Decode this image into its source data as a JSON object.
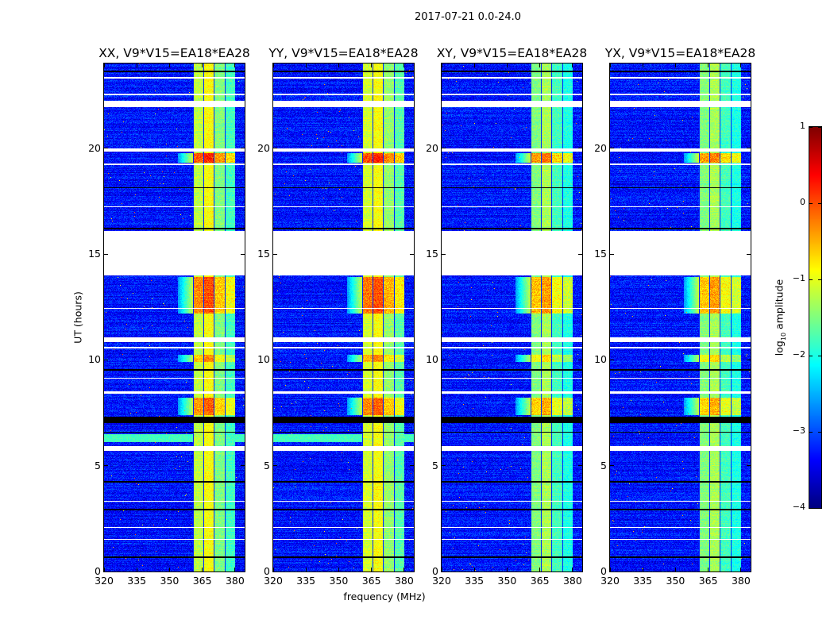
{
  "chart_data": {
    "type": "heatmap",
    "title": "2017-07-21 0.0-24.0",
    "xlabel": "frequency (MHz)",
    "ylabel": "UT (hours)",
    "xlim": [
      320,
      384.4
    ],
    "ylim": [
      0,
      24
    ],
    "xticks": [
      320,
      335,
      350,
      365,
      380
    ],
    "yticks": [
      0,
      5,
      10,
      15,
      20
    ],
    "colorbar": {
      "label_main": "log",
      "label_sub": "10",
      "label_rest": " amplitude",
      "range": [
        -4,
        1
      ],
      "ticks": [
        1,
        0,
        -1,
        -2,
        -3,
        -4
      ],
      "tick_labels": [
        "1",
        "0",
        "−1",
        "−2",
        "−3",
        "−4"
      ],
      "colormap": "jet"
    },
    "background_level": -3.3,
    "subbands_mhz": [
      [
        360.8,
        365.5
      ],
      [
        365.5,
        370.2
      ],
      [
        370.2,
        375.3
      ],
      [
        375.3,
        380.0
      ]
    ],
    "flagged_hours_white": [
      [
        14.0,
        16.1
      ],
      [
        21.95,
        22.25
      ],
      [
        19.85,
        20.0
      ],
      [
        5.7,
        5.92
      ],
      [
        10.85,
        11.05
      ],
      [
        10.55,
        10.62
      ],
      [
        22.5,
        22.58
      ],
      [
        23.3,
        23.35
      ],
      [
        19.2,
        19.28
      ],
      [
        8.4,
        8.5
      ],
      [
        3.3,
        3.35
      ],
      [
        2.05,
        2.1
      ],
      [
        12.4,
        12.45
      ],
      [
        17.2,
        17.25
      ],
      [
        1.5,
        1.55
      ],
      [
        9.1,
        9.15
      ]
    ],
    "black_lines_hours": [
      [
        23.6,
        23.66
      ],
      [
        16.15,
        16.25
      ],
      [
        7.0,
        7.3
      ],
      [
        4.2,
        4.26
      ],
      [
        2.9,
        2.95
      ],
      [
        0.65,
        0.7
      ],
      [
        9.5,
        9.55
      ],
      [
        6.55,
        6.6
      ],
      [
        18.1,
        18.14
      ]
    ],
    "bright_events": [
      {
        "hours": [
          19.3,
          19.75
        ],
        "boost": 1.1
      },
      {
        "hours": [
          12.2,
          13.9
        ],
        "boost": 0.9
      },
      {
        "hours": [
          7.4,
          8.2
        ],
        "boost": 0.8
      },
      {
        "hours": [
          9.9,
          10.25
        ],
        "boost": 0.6
      }
    ],
    "panels": [
      {
        "title": "XX, V9*V15=EA18*EA28",
        "subband_levels": [
          -1.2,
          -0.9,
          -1.5,
          -1.8
        ],
        "broadband_hours": [
          6.1,
          6.5
        ],
        "broadband_level": -1.8
      },
      {
        "title": "YY, V9*V15=EA18*EA28",
        "subband_levels": [
          -1.1,
          -0.9,
          -1.4,
          -1.7
        ],
        "broadband_hours": [
          6.1,
          6.5
        ],
        "broadband_level": -1.8
      },
      {
        "title": "XY, V9*V15=EA18*EA28",
        "subband_levels": [
          -1.5,
          -1.3,
          -1.8,
          -2.0
        ],
        "broadband_hours": null,
        "broadband_level": null
      },
      {
        "title": "YX, V9*V15=EA18*EA28",
        "subband_levels": [
          -1.5,
          -1.3,
          -1.8,
          -2.0
        ],
        "broadband_hours": null,
        "broadband_level": null
      }
    ]
  }
}
